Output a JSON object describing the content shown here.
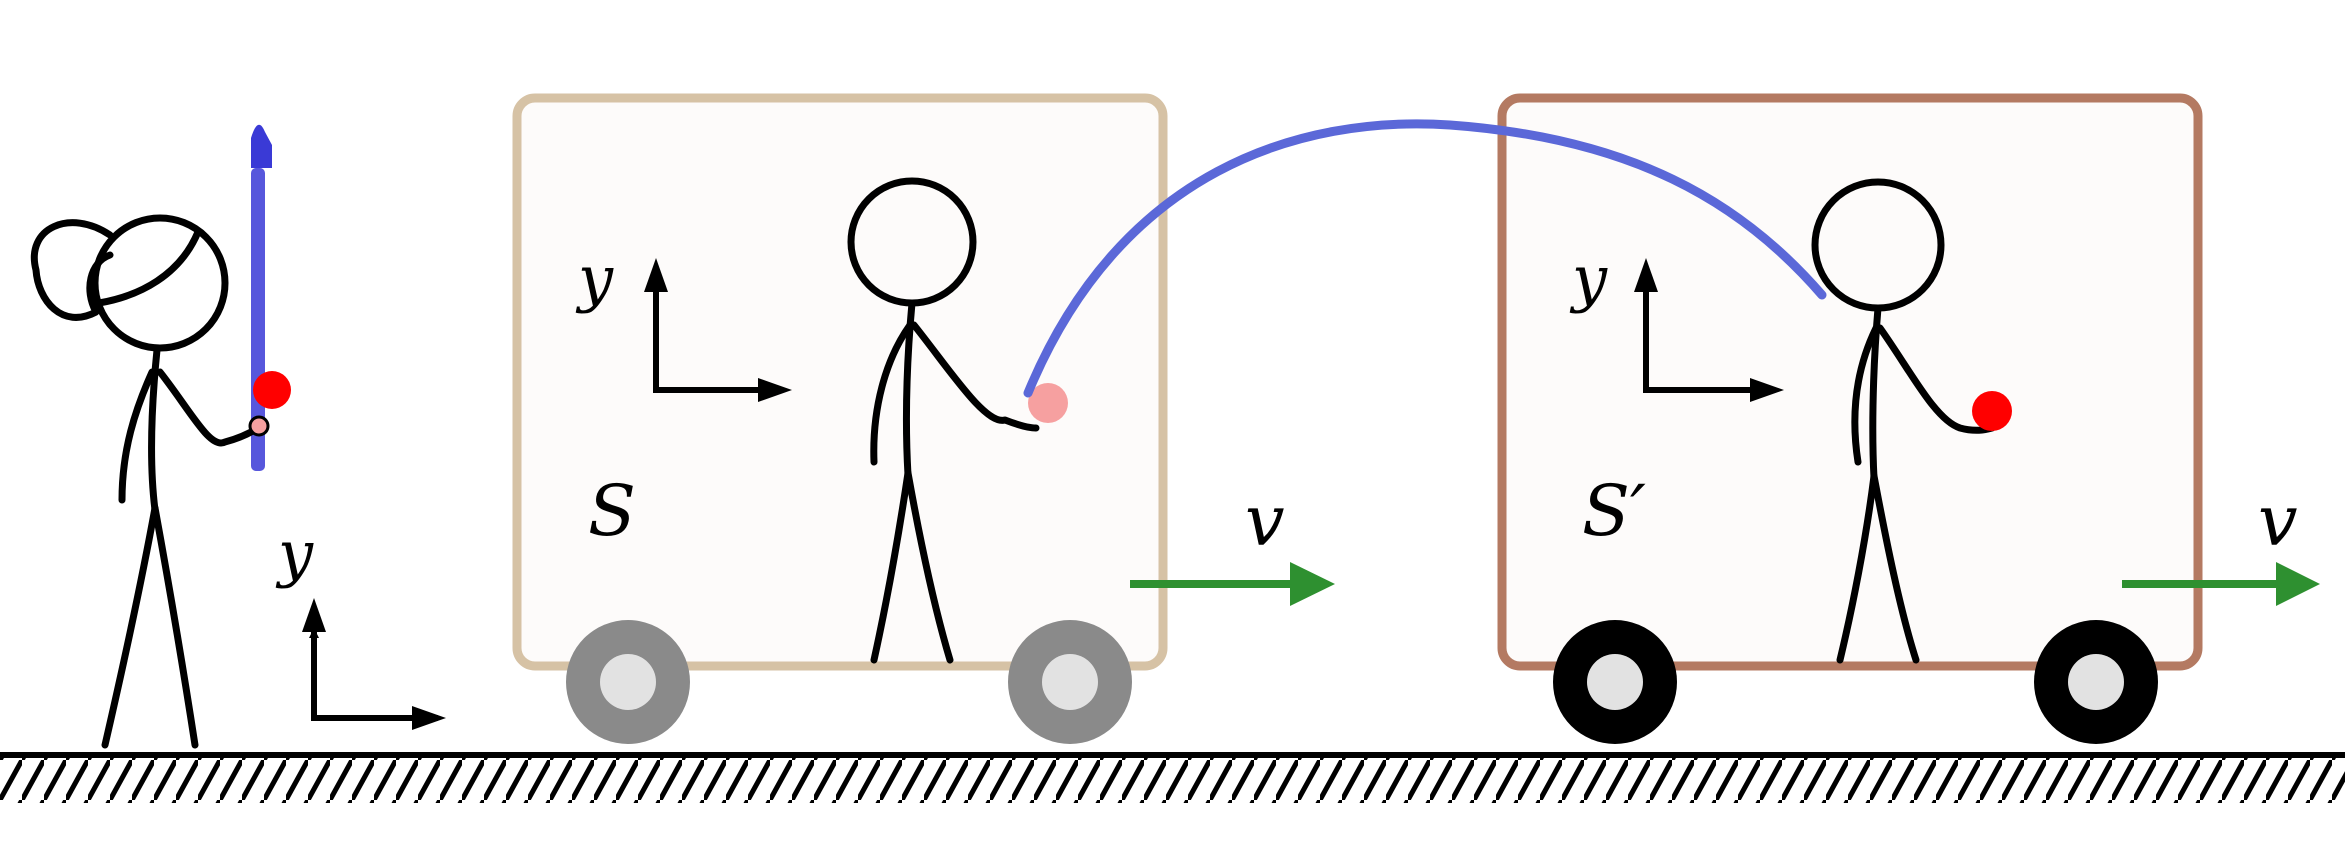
{
  "ground_observer": {
    "axis_label": "y"
  },
  "frame_s": {
    "name": "S",
    "axis_label": "y",
    "velocity_label": "v"
  },
  "frame_s_prime": {
    "name": "S′",
    "axis_label": "y",
    "velocity_label": "v"
  },
  "colors": {
    "ground_line": "#000000",
    "cart_s_border": "#d6c2a5",
    "cart_s_prime_border": "#b47a62",
    "cart_fill": "#fdfbfa",
    "wheel_gray": "#8a8a8a",
    "wheel_black": "#000000",
    "wheel_hub": "#e2e2e2",
    "velocity_arrow": "#2e9030",
    "trajectory_arc": "#5b68d8",
    "vertical_path": "#3a3ad6",
    "ball": "#ff0000",
    "ball_faded": "#f6a0a0"
  }
}
